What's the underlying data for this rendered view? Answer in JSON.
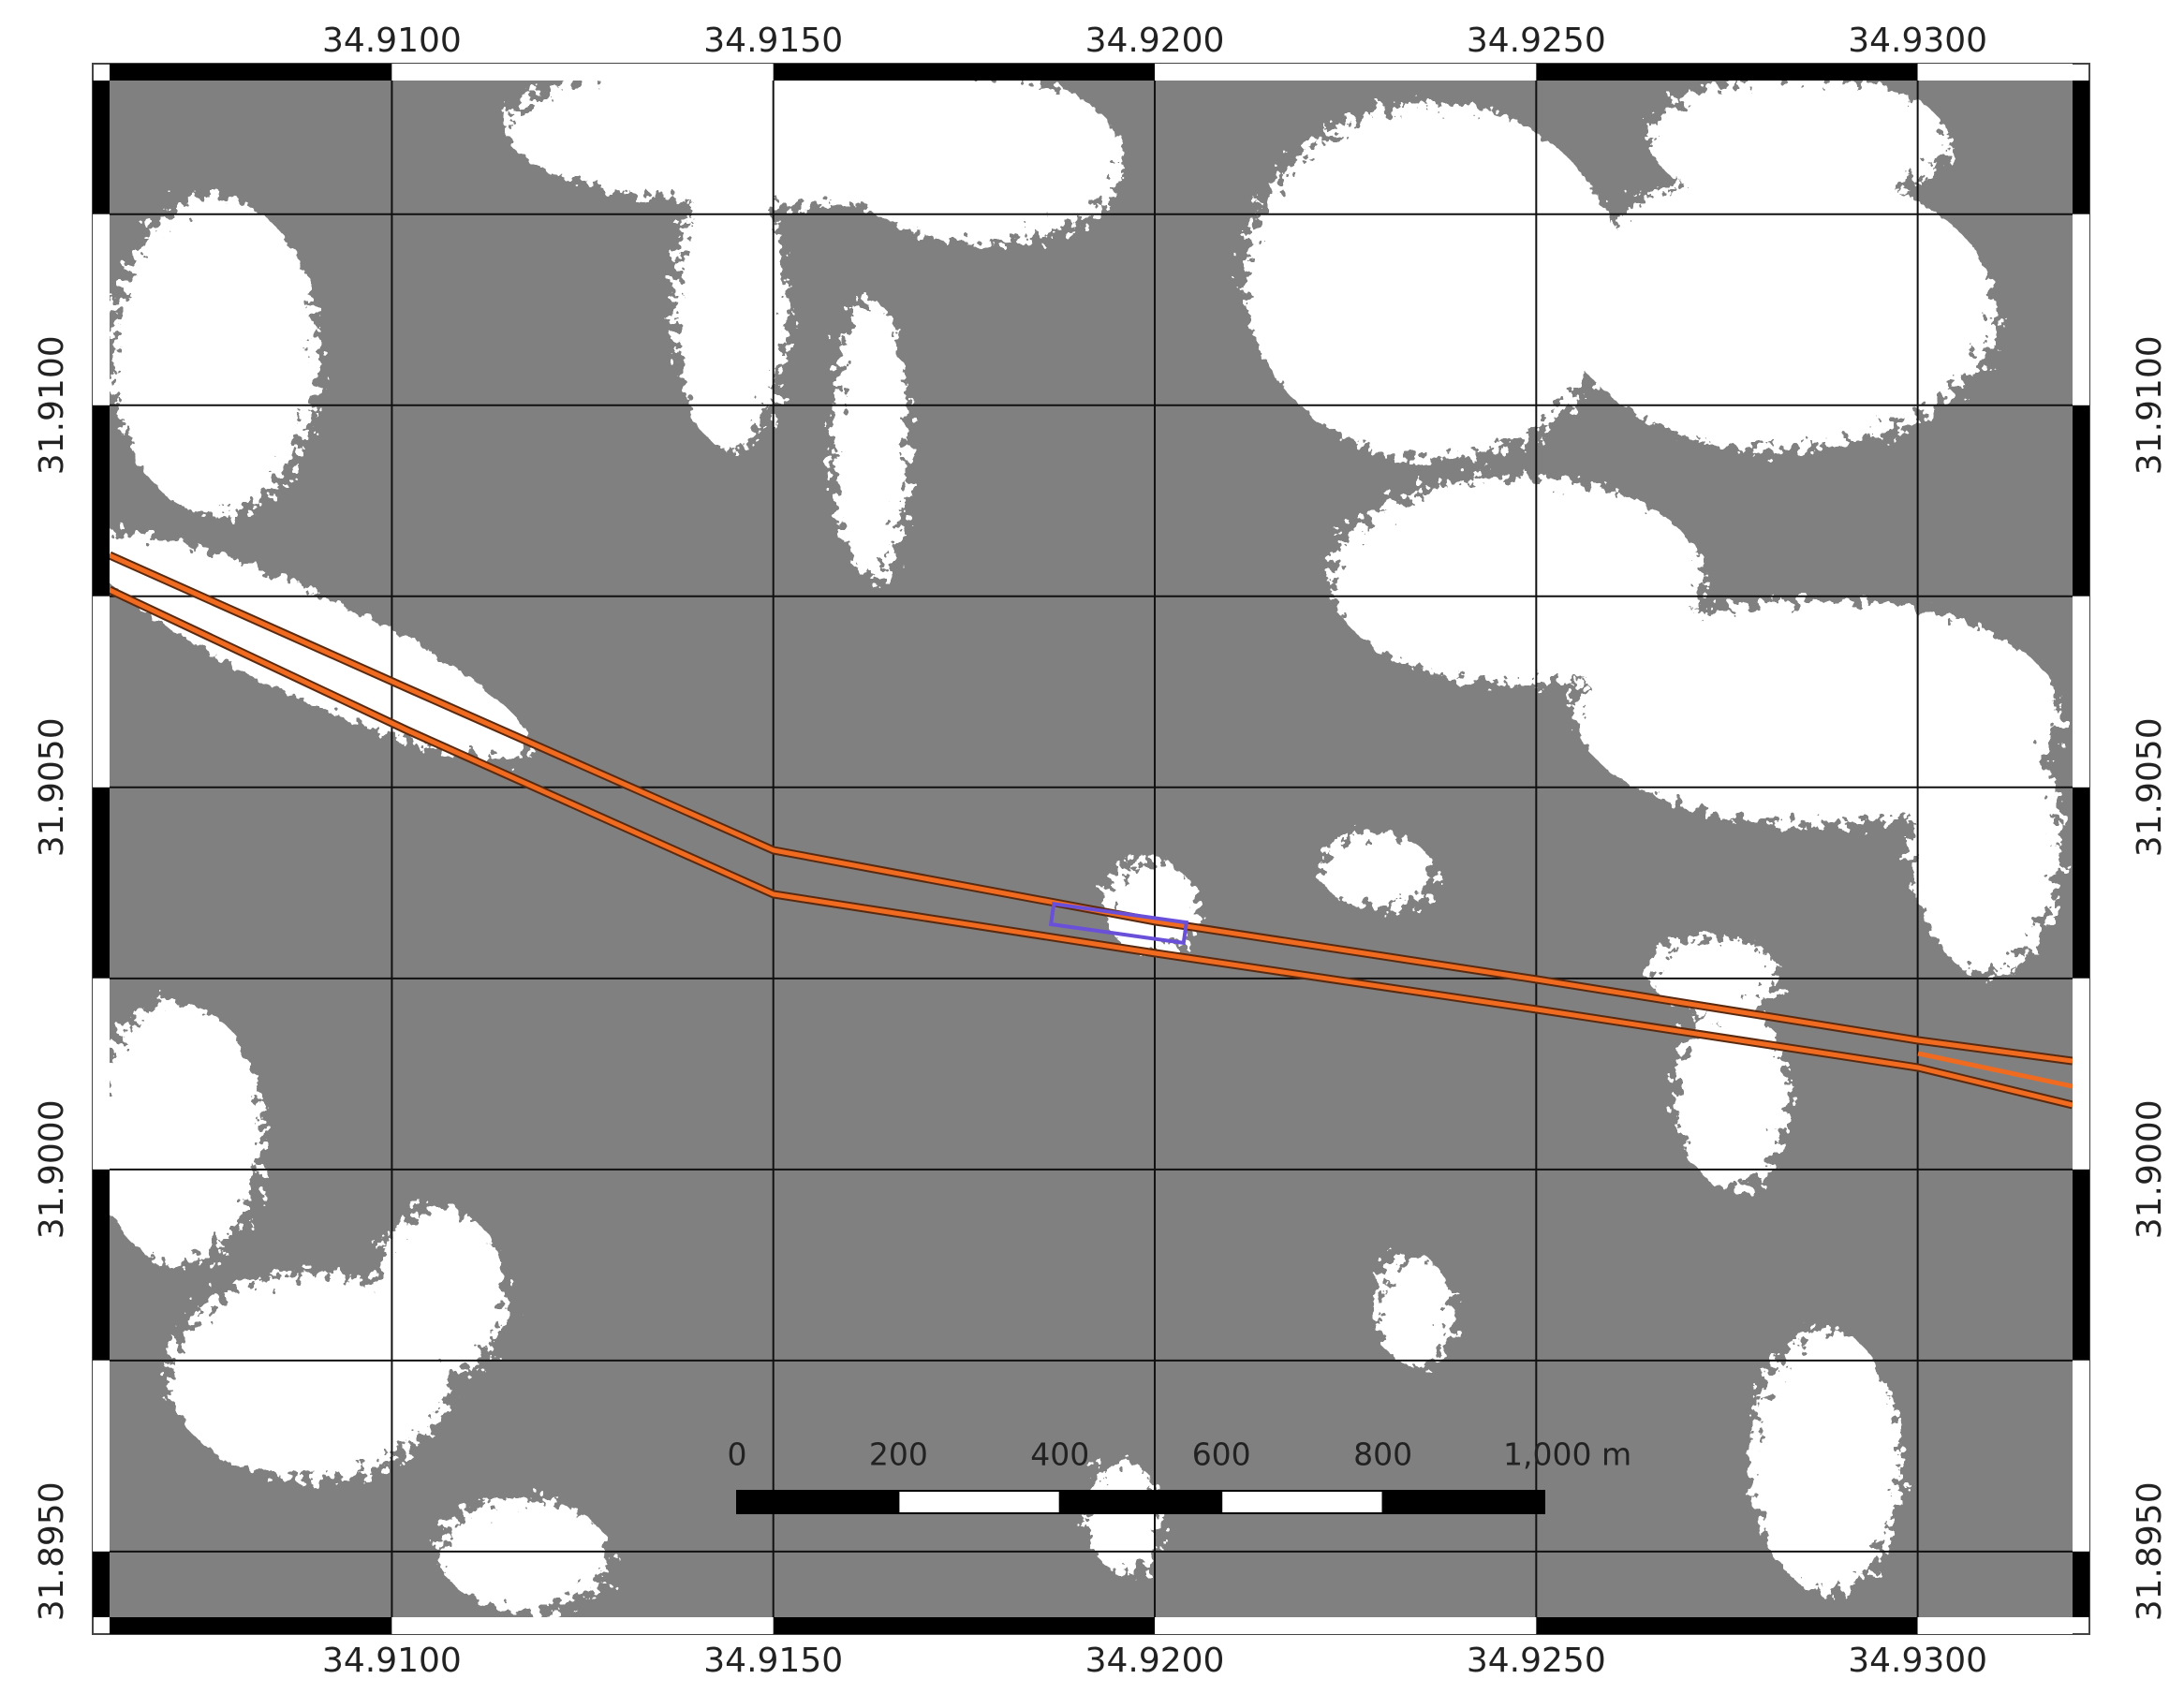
{
  "chart_data": {
    "type": "map",
    "xlim": [
      34.9063,
      34.93203
    ],
    "ylim": [
      31.89414,
      31.91425
    ],
    "xticks": [
      {
        "value": 34.91,
        "label": "34.9100"
      },
      {
        "value": 34.915,
        "label": "34.9150"
      },
      {
        "value": 34.92,
        "label": "34.9200"
      },
      {
        "value": 34.925,
        "label": "34.9250"
      },
      {
        "value": 34.93,
        "label": "34.9300"
      }
    ],
    "yticks": [
      {
        "value": 31.91,
        "label": "31.9100"
      },
      {
        "value": 31.905,
        "label": "31.9050"
      },
      {
        "value": 31.9,
        "label": "31.9000"
      },
      {
        "value": 31.895,
        "label": "31.8950"
      }
    ],
    "yminor": [
      31.9125,
      31.9075,
      31.9025,
      31.8975
    ],
    "grid": true,
    "scale_bar": [
      "0",
      "200",
      "400",
      "600",
      "800",
      "1,000 m"
    ]
  }
}
